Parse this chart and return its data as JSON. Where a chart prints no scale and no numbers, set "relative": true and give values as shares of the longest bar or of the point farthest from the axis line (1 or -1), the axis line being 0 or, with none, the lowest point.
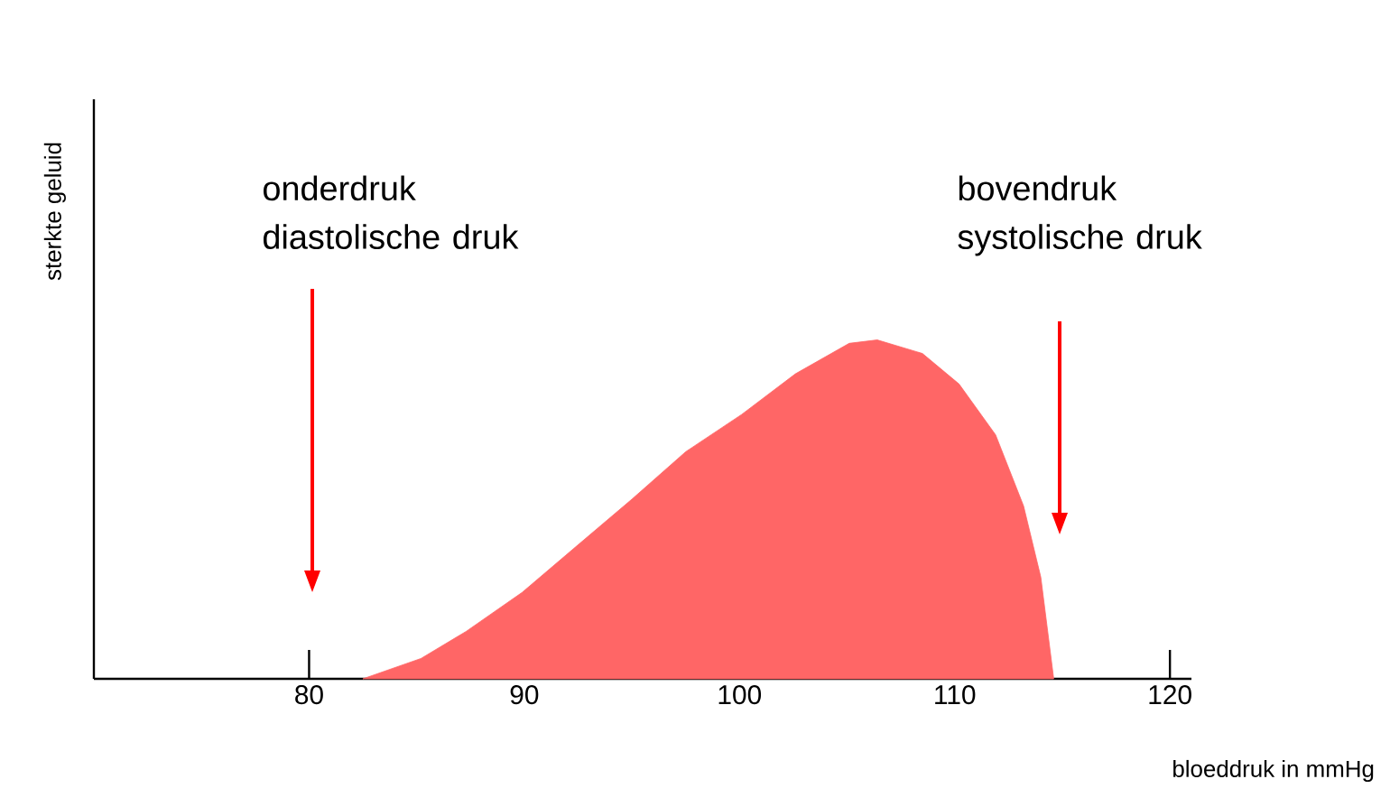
{
  "chart_data": {
    "type": "area",
    "relative": true,
    "xlabel": "bloeddruk in mmHg",
    "ylabel": "sterkte geluid",
    "xlim": [
      70,
      121
    ],
    "xticks": [
      80,
      90,
      100,
      110,
      120
    ],
    "series": [
      {
        "color": "#ff6666",
        "x": [
          82.5,
          85.2,
          87.3,
          89.9,
          92.4,
          95,
          97.5,
          100.1,
          102.6,
          105.1,
          106.4,
          108.5,
          110.2,
          111.9,
          113.2,
          114,
          114.6
        ],
        "values": [
          0,
          0.06,
          0.14,
          0.255,
          0.39,
          0.53,
          0.67,
          0.78,
          0.9,
          0.99,
          1,
          0.96,
          0.87,
          0.72,
          0.51,
          0.3,
          0
        ]
      }
    ],
    "annotations": [
      "onderdruk diastolische druk",
      "bovendruk systolische druk"
    ]
  }
}
